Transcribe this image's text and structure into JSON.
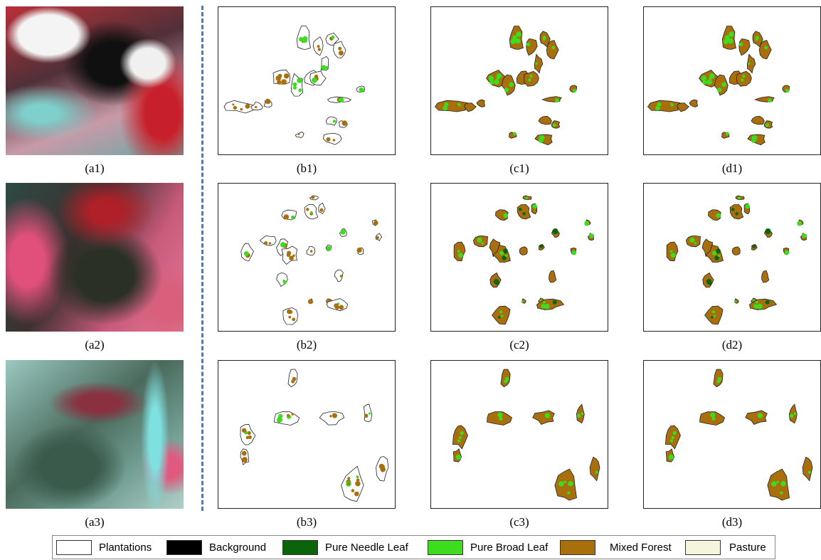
{
  "rows": [
    [
      "(a1)",
      "(b1)",
      "(c1)",
      "(d1)"
    ],
    [
      "(a2)",
      "(b2)",
      "(c2)",
      "(d2)"
    ],
    [
      "(a3)",
      "(b3)",
      "(c3)",
      "(d3)"
    ]
  ],
  "legend": [
    {
      "label": "Plantations",
      "color": "#ffffff"
    },
    {
      "label": "Background",
      "color": "#000000"
    },
    {
      "label": "Pure Needle Leaf",
      "color": "#0a640a"
    },
    {
      "label": "Pure Broad Leaf",
      "color": "#3ddc1e"
    },
    {
      "label": "Mixed Forest",
      "color": "#a86f0c"
    },
    {
      "label": "Pasture",
      "color": "#f6f4dc"
    }
  ]
}
